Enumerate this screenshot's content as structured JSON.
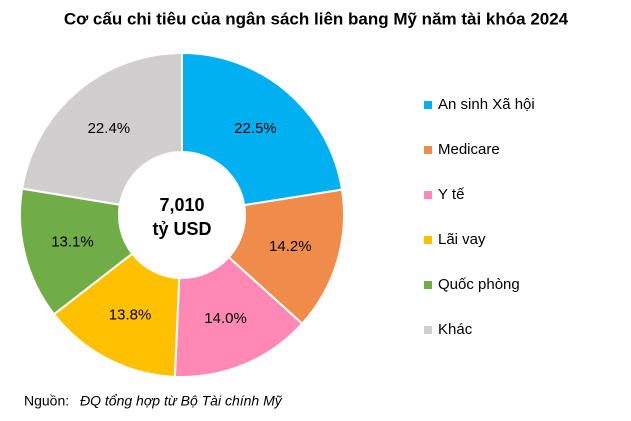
{
  "chart_data": {
    "type": "donut",
    "title": "Cơ cấu chi tiêu của ngân sách liên bang Mỹ năm tài khóa 2024",
    "categories": [
      "An sinh Xã hội",
      "Medicare",
      "Y tế",
      "Lãi vay",
      "Quốc phòng",
      "Khác"
    ],
    "values": [
      22.5,
      14.2,
      14.0,
      13.8,
      13.1,
      22.4
    ],
    "value_labels": [
      "22.5%",
      "14.2%",
      "14.0%",
      "13.8%",
      "13.1%",
      "22.4%"
    ],
    "colors": [
      "#00b0f0",
      "#f08c4a",
      "#ff88b4",
      "#ffc000",
      "#70ad47",
      "#d0cece"
    ],
    "center_value": "7,010",
    "center_unit": "tỷ USD",
    "source_label": "Nguồn:",
    "source": "ĐQ tổng hợp từ Bộ Tài chính Mỹ",
    "legend": "right"
  }
}
